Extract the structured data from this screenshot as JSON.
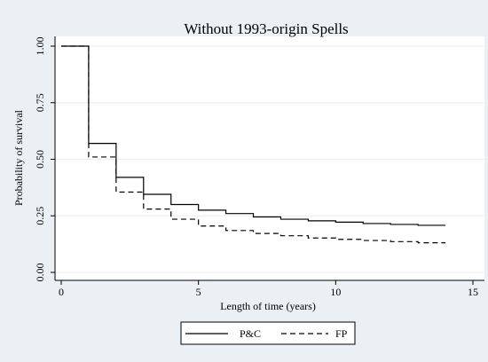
{
  "chart_data": {
    "type": "line",
    "title": "Without 1993-origin Spells",
    "xlabel": "Length of time (years)",
    "ylabel": "Probability of survival",
    "xlim": [
      0,
      15
    ],
    "ylim": [
      0,
      1
    ],
    "x_ticks": [
      0,
      5,
      10,
      15
    ],
    "x_tick_labels": [
      "0",
      "5",
      "10",
      "15"
    ],
    "y_ticks": [
      0,
      0.25,
      0.5,
      0.75,
      1
    ],
    "y_tick_labels": [
      "0.00",
      "0.25",
      "0.50",
      "0.75",
      "1.00"
    ],
    "grid": true,
    "legend_position": "bottom",
    "step_function": true,
    "series": [
      {
        "name": "P&C",
        "line_style": "solid",
        "color": "#000000",
        "x": [
          0,
          1,
          2,
          3,
          4,
          5,
          6,
          7,
          8,
          9,
          10,
          11,
          12,
          13,
          14
        ],
        "y": [
          1.0,
          0.57,
          0.42,
          0.345,
          0.3,
          0.275,
          0.26,
          0.245,
          0.235,
          0.228,
          0.222,
          0.216,
          0.212,
          0.208,
          0.208
        ]
      },
      {
        "name": "FP",
        "line_style": "dashed",
        "color": "#000000",
        "x": [
          0,
          1,
          2,
          3,
          4,
          5,
          6,
          7,
          8,
          9,
          10,
          11,
          12,
          13,
          14
        ],
        "y": [
          1.0,
          0.51,
          0.355,
          0.28,
          0.235,
          0.205,
          0.185,
          0.172,
          0.162,
          0.152,
          0.146,
          0.141,
          0.136,
          0.131,
          0.131
        ]
      }
    ]
  },
  "colors": {
    "outer_background": "#eaf0f4",
    "plot_background": "#ffffff",
    "grid": "#e9eef2"
  }
}
